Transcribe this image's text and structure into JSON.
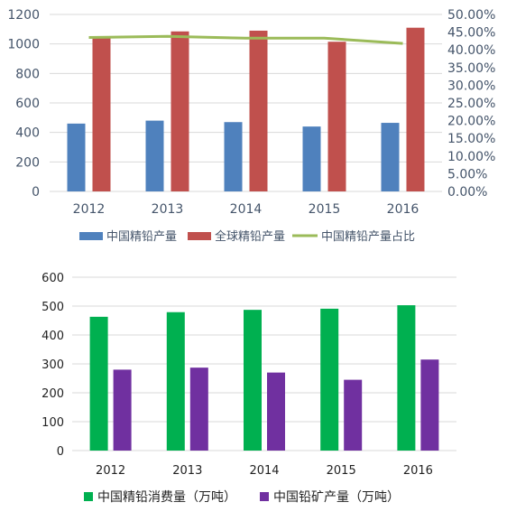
{
  "chart_data": [
    {
      "type": "bar",
      "categories": [
        "2012",
        "2013",
        "2014",
        "2015",
        "2016"
      ],
      "series": [
        {
          "name": "中国精铅产量",
          "type": "bar",
          "axis": "left",
          "color": "#4f81bd",
          "values": [
            460,
            480,
            470,
            440,
            465
          ]
        },
        {
          "name": "全球精铅产量",
          "type": "bar",
          "axis": "left",
          "color": "#c0504d",
          "values": [
            1050,
            1085,
            1090,
            1015,
            1110
          ]
        },
        {
          "name": "中国精铅产量占比",
          "type": "line",
          "axis": "right",
          "color": "#9bbb59",
          "values": [
            0.435,
            0.438,
            0.433,
            0.433,
            0.418
          ]
        }
      ],
      "ylim": [
        0,
        1200
      ],
      "y_ticks": [
        "0",
        "200",
        "400",
        "600",
        "800",
        "1000",
        "1200"
      ],
      "y2lim": [
        0,
        0.5
      ],
      "y2_ticks": [
        "0.00%",
        "5.00%",
        "10.00%",
        "15.00%",
        "20.00%",
        "25.00%",
        "30.00%",
        "35.00%",
        "40.00%",
        "45.00%",
        "50.00%"
      ],
      "grid": true,
      "legend": "bottom"
    },
    {
      "type": "bar",
      "categories": [
        "2012",
        "2013",
        "2014",
        "2015",
        "2016"
      ],
      "series": [
        {
          "name": "中国精铅消费量（万吨）",
          "color": "#00b050",
          "values": [
            463,
            479,
            487,
            491,
            503
          ]
        },
        {
          "name": "中国铅矿产量（万吨）",
          "color": "#7030a0",
          "values": [
            280,
            287,
            270,
            245,
            315
          ]
        }
      ],
      "ylim": [
        0,
        600
      ],
      "y_ticks": [
        "0",
        "100",
        "200",
        "300",
        "400",
        "500",
        "600"
      ],
      "grid": true,
      "legend": "bottom"
    }
  ]
}
